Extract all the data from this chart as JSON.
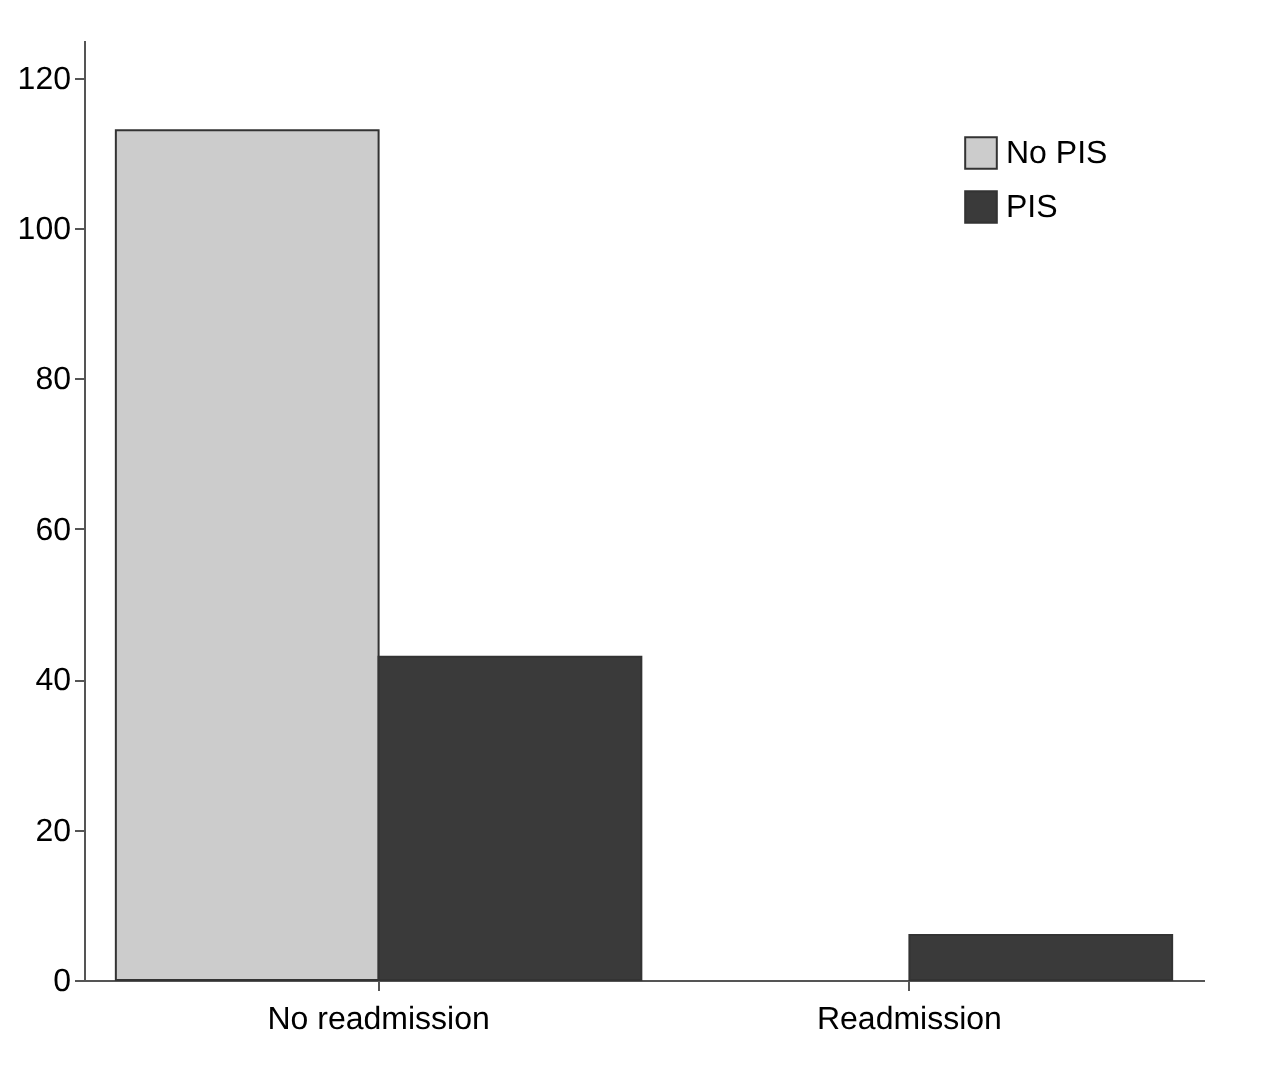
{
  "chart_data": {
    "type": "bar",
    "categories": [
      "No readmission",
      "Readmission"
    ],
    "series": [
      {
        "name": "No PIS",
        "color": "#cccccc",
        "values": [
          113,
          0
        ]
      },
      {
        "name": "PIS",
        "color": "#3a3a3a",
        "values": [
          43,
          6
        ]
      }
    ],
    "ylim": [
      0,
      125
    ],
    "yticks": [
      0,
      20,
      40,
      60,
      80,
      100,
      120
    ],
    "grid": false,
    "legend": "top right"
  }
}
